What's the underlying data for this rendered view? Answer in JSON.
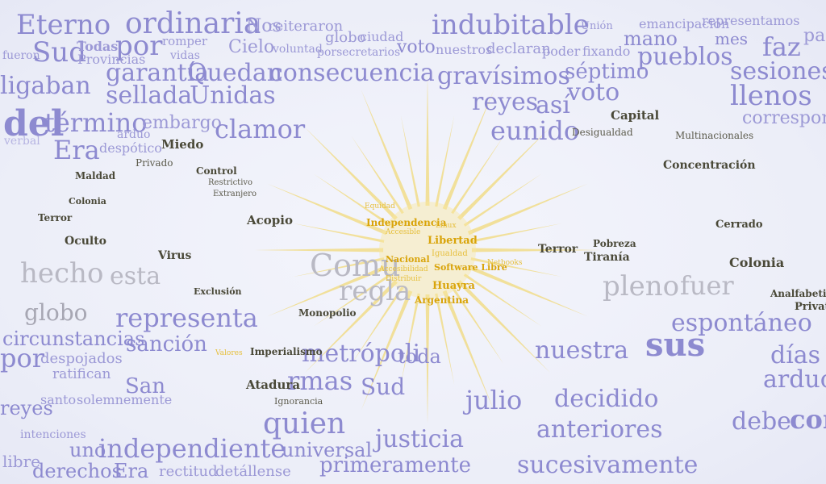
{
  "colors": {
    "background": "#eef0fa",
    "lavender": "#8d8ad0",
    "grey": "#b9b9c4",
    "olive": "#4a4938",
    "gold": "#d9a40a"
  },
  "words": {
    "eterno": "Eterno",
    "ordinaria": "ordinaria",
    "nos": "Nos",
    "reiteraron": "reiteraron",
    "indubitable": "indubitable",
    "sud": "Sud",
    "todas": "Todas",
    "por": "por",
    "romper": "romper",
    "cielo": "Cielo",
    "globo": "globo",
    "ciudad": "ciudad",
    "voto": "voto",
    "nuestros": "nuestros",
    "declaran": "declaran",
    "poder": "poder",
    "fixando": "fixando",
    "mano": "mano",
    "mes": "mes",
    "faz": "faz",
    "pais": "país",
    "fueron": "fueron",
    "provincias": "Provincias",
    "vidas": "vidas",
    "voluntad": "voluntad",
    "porsecretarios": "porsecretarios",
    "pueblos": "pueblos",
    "emancipacion": "emancipación",
    "representamos": "representamos",
    "union": "Unión",
    "garantia": "garantía",
    "quedan": "Quedan",
    "consecuencia": "consecuencia",
    "gravisimos": "gravísimos",
    "septimo": "séptimo",
    "sesiones": "sesiones",
    "ligaban": "ligaban",
    "sellada": "sellada",
    "unidas": "Unidas",
    "reyes": "reyes",
    "asi": "así",
    "llenos": "llenos",
    "del": "del",
    "termino": "término",
    "embargo": "embargo",
    "clamor": "clamor",
    "eunido": "eunido",
    "voto2": "voto",
    "corresponda": "corresponda",
    "era": "Era",
    "despotico": "despótico",
    "arduo": "arduo",
    "verbal": "verbal",
    "hecho": "hecho",
    "esta": "esta",
    "comu": "Comu",
    "regla": "regla",
    "pleno": "pleno",
    "fuer": "fuer",
    "globo2": "globo",
    "representa": "representa",
    "espontaneo": "espontáneo",
    "circunstancias": "circunstancias",
    "sancion": "sanción",
    "metropoli": "metrópoli",
    "toda": "toda",
    "nuestra": "nuestra",
    "sus": "sus",
    "dias": "días",
    "por2": "por",
    "despojados": "despojados",
    "ratifican": "ratifican",
    "san": "San",
    "rmas": "rmas",
    "sud2": "Sud",
    "julio": "julio",
    "decidido": "decidido",
    "arduo2": "arduo",
    "reyes2": "reyes",
    "santo": "santo",
    "solemnemente": "solemnemente",
    "quien": "quien",
    "justicia": "justicia",
    "anteriores": "anteriores",
    "debe": "debe",
    "con": "con",
    "independiente": "independiente",
    "universal": "universal",
    "primeramente": "primeramente",
    "sucesivamente": "sucesivamente",
    "derechos": "derechos",
    "era2": "Era",
    "rectitud": "rectitud",
    "detallense": "detállense",
    "libre": "libre",
    "intenciones": "intenciones",
    "uno": "uno",
    "miedo": "Miedo",
    "privado": "Privado",
    "control": "Control",
    "restrictivo": "Restrictivo",
    "extranjero": "Extranjero",
    "maldad": "Maldad",
    "colonia": "Colonia",
    "terror": "Terror",
    "oculto": "Oculto",
    "acopio": "Acopio",
    "virus": "Virus",
    "exclusion": "Exclusión",
    "capital": "Capital",
    "colonia2": "Colonia",
    "terror2": "Terror",
    "tirania": "Tiranía",
    "pobreza": "Pobreza",
    "cerrado": "Cerrado",
    "atadura": "Atadura",
    "imperialismo": "Imperialismo",
    "monopolio": "Monopolio",
    "concentracion": "Concentración",
    "desigualdad": "Desigualdad",
    "multinacionales": "Multinacionales",
    "ignorancia": "Ignorancia",
    "analfabetismo": "Analfabetismo",
    "privati": "Privati",
    "independencia": "Independencia",
    "libertad": "Libertad",
    "igualdad": "Igualdad",
    "nacional": "Nacional",
    "accesibilidad": "Accesibilidad",
    "distribuir": "Distribuir",
    "software_libre": "Software Libre",
    "huayra": "Huayra",
    "argentina": "Argentina",
    "equidad": "Equidad",
    "linux": "Linux",
    "netbooks": "Netbooks",
    "valores": "Valores",
    "accesible": "Accesible"
  }
}
